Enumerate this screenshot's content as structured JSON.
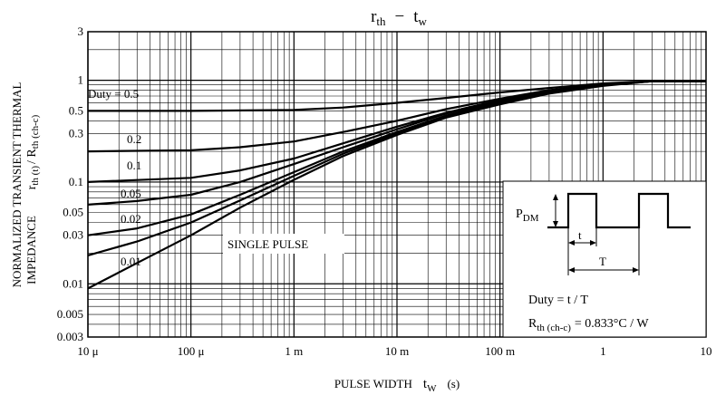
{
  "chart_data": {
    "type": "line",
    "title": {
      "main": "r",
      "main_sub": "th",
      "dash": "−",
      "second": "t",
      "second_sub": "w"
    },
    "xlabel": {
      "text": "PULSE WIDTH",
      "sym": "t",
      "sym_sub": "W",
      "unit": "(s)"
    },
    "ylabel": {
      "line1": "NORMALIZED TRANSIENT THERMAL",
      "line2": "IMPEDANCE",
      "sym": "r",
      "sym_sub1": "th (t)",
      "mid": "/ R",
      "sym_sub2": "th (ch-c)"
    },
    "x_scale": "log",
    "y_scale": "log",
    "xlim": [
      1e-05,
      10
    ],
    "ylim": [
      0.003,
      3
    ],
    "grid": true,
    "x_ticks": [
      {
        "value": 1e-05,
        "label": "10 μ"
      },
      {
        "value": 0.0001,
        "label": "100 μ"
      },
      {
        "value": 0.001,
        "label": "1 m"
      },
      {
        "value": 0.01,
        "label": "10 m"
      },
      {
        "value": 0.1,
        "label": "100 m"
      },
      {
        "value": 1,
        "label": "1"
      },
      {
        "value": 10,
        "label": "10"
      }
    ],
    "y_ticks": [
      {
        "value": 3,
        "label": "3"
      },
      {
        "value": 1,
        "label": "1"
      },
      {
        "value": 0.5,
        "label": "0.5"
      },
      {
        "value": 0.3,
        "label": "0.3"
      },
      {
        "value": 0.1,
        "label": "0.1"
      },
      {
        "value": 0.05,
        "label": "0.05"
      },
      {
        "value": 0.03,
        "label": "0.03"
      },
      {
        "value": 0.01,
        "label": "0.01"
      },
      {
        "value": 0.005,
        "label": "0.005"
      },
      {
        "value": 0.003,
        "label": "0.003"
      }
    ],
    "series": [
      {
        "name": "Duty = 0.5",
        "x": [
          1e-05,
          0.0001,
          0.001,
          0.003,
          0.01,
          0.03,
          0.1,
          0.3,
          1,
          3,
          10
        ],
        "y": [
          0.5,
          0.5,
          0.51,
          0.54,
          0.6,
          0.67,
          0.76,
          0.84,
          0.93,
          0.98,
          0.98
        ]
      },
      {
        "name": "0.2",
        "x": [
          1e-05,
          0.0001,
          0.0003,
          0.001,
          0.003,
          0.01,
          0.03,
          0.1,
          0.3,
          1,
          3,
          10
        ],
        "y": [
          0.2,
          0.205,
          0.22,
          0.25,
          0.31,
          0.4,
          0.52,
          0.66,
          0.8,
          0.92,
          0.98,
          0.98
        ]
      },
      {
        "name": "0.1",
        "x": [
          1e-05,
          0.0001,
          0.0003,
          0.001,
          0.003,
          0.01,
          0.03,
          0.1,
          0.3,
          1,
          3,
          10
        ],
        "y": [
          0.1,
          0.11,
          0.13,
          0.17,
          0.24,
          0.35,
          0.48,
          0.64,
          0.78,
          0.91,
          0.98,
          0.98
        ]
      },
      {
        "name": "0.05",
        "x": [
          1e-05,
          3e-05,
          0.0001,
          0.0003,
          0.001,
          0.003,
          0.01,
          0.03,
          0.1,
          0.3,
          1,
          3,
          10
        ],
        "y": [
          0.06,
          0.065,
          0.075,
          0.1,
          0.15,
          0.22,
          0.33,
          0.47,
          0.62,
          0.77,
          0.9,
          0.98,
          0.98
        ]
      },
      {
        "name": "0.02",
        "x": [
          1e-05,
          3e-05,
          0.0001,
          0.0003,
          0.001,
          0.003,
          0.01,
          0.03,
          0.1,
          0.3,
          1,
          3,
          10
        ],
        "y": [
          0.03,
          0.035,
          0.048,
          0.075,
          0.125,
          0.2,
          0.31,
          0.45,
          0.6,
          0.76,
          0.9,
          0.98,
          0.98
        ]
      },
      {
        "name": "0.01",
        "x": [
          1e-05,
          3e-05,
          0.0001,
          0.0003,
          0.001,
          0.003,
          0.01,
          0.03,
          0.1,
          0.3,
          1,
          3,
          10
        ],
        "y": [
          0.019,
          0.026,
          0.04,
          0.066,
          0.115,
          0.19,
          0.3,
          0.44,
          0.59,
          0.75,
          0.89,
          0.98,
          0.98
        ]
      },
      {
        "name": "SINGLE PULSE",
        "x": [
          1e-05,
          3e-05,
          0.0001,
          0.0003,
          0.001,
          0.003,
          0.01,
          0.03,
          0.1,
          0.3,
          1,
          3,
          10
        ],
        "y": [
          0.009,
          0.016,
          0.03,
          0.056,
          0.105,
          0.18,
          0.29,
          0.43,
          0.58,
          0.74,
          0.88,
          0.98,
          0.98
        ]
      }
    ],
    "inset": {
      "pdm": "P",
      "pdm_sub": "DM",
      "t_label": "t",
      "T_label": "T",
      "duty_text": "Duty = t / T",
      "rth_sym": "R",
      "rth_sub": "th (ch-c)",
      "rth_value": "= 0.833°C / W"
    }
  }
}
